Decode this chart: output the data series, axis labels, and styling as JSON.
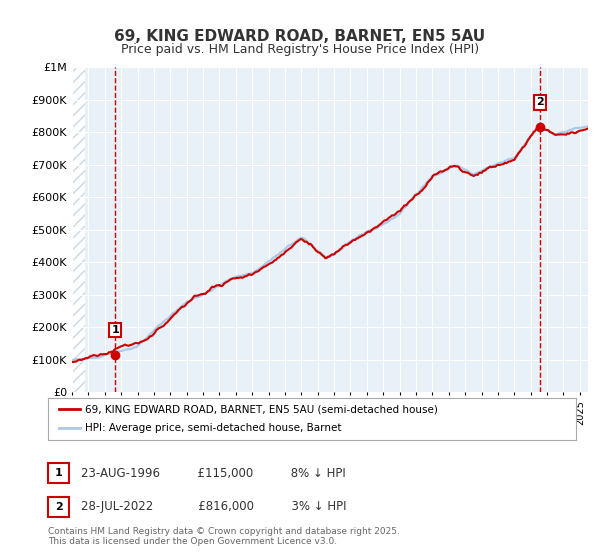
{
  "title": "69, KING EDWARD ROAD, BARNET, EN5 5AU",
  "subtitle": "Price paid vs. HM Land Registry's House Price Index (HPI)",
  "ylabel": "",
  "ylim": [
    0,
    1000000
  ],
  "yticks": [
    0,
    100000,
    200000,
    300000,
    400000,
    500000,
    600000,
    700000,
    800000,
    900000,
    1000000
  ],
  "ytick_labels": [
    "£0",
    "£100K",
    "£200K",
    "£300K",
    "£400K",
    "£500K",
    "£600K",
    "£700K",
    "£800K",
    "£900K",
    "£1M"
  ],
  "sale1_date_num": 1996.645,
  "sale1_price": 115000,
  "sale1_label": "1",
  "sale2_date_num": 2022.573,
  "sale2_price": 816000,
  "sale2_label": "2",
  "hpi_color": "#aac8e8",
  "price_color": "#cc0000",
  "vline_color": "#cc0000",
  "background_color": "#e8f0f8",
  "hatch_color": "#c8d8e8",
  "grid_color": "#ffffff",
  "legend_label_price": "69, KING EDWARD ROAD, BARNET, EN5 5AU (semi-detached house)",
  "legend_label_hpi": "HPI: Average price, semi-detached house, Barnet",
  "annotation1": "1    23-AUG-1996          £115,000          8% ↓ HPI",
  "annotation2": "2    28-JUL-2022            £816,000          3% ↓ HPI",
  "footnote": "Contains HM Land Registry data © Crown copyright and database right 2025.\nThis data is licensed under the Open Government Licence v3.0.",
  "xmin": 1994,
  "xmax": 2025.5
}
